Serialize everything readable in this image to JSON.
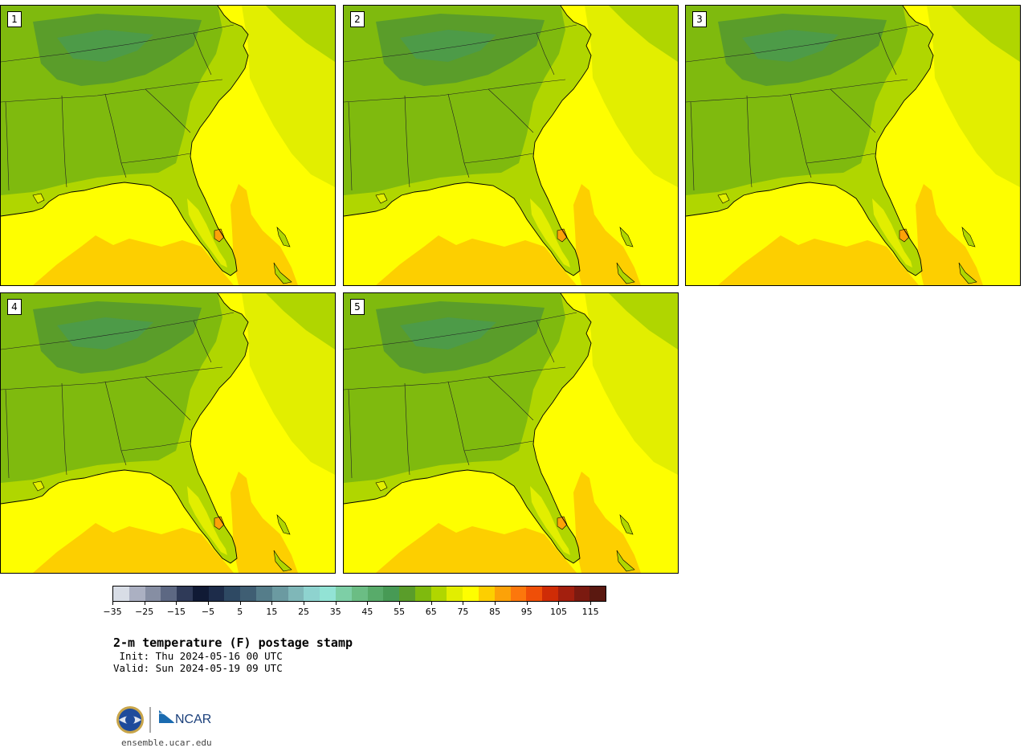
{
  "panels": [
    {
      "label": "1"
    },
    {
      "label": "2"
    },
    {
      "label": "3"
    },
    {
      "label": "4"
    },
    {
      "label": "5"
    }
  ],
  "colorbar": {
    "colors": [
      "#d8dde6",
      "#abb0c2",
      "#868ea3",
      "#5d6883",
      "#2f3a58",
      "#101a35",
      "#1d2c4a",
      "#2e4963",
      "#3f5e73",
      "#557d8a",
      "#6b9aa1",
      "#7fb7b8",
      "#8ed3cf",
      "#92e3d5",
      "#7dcfa6",
      "#6bbd84",
      "#58ab6a",
      "#479a55",
      "#5a9d2a",
      "#7fba0e",
      "#b0d600",
      "#e2ee00",
      "#fefe00",
      "#fdcf00",
      "#fca208",
      "#fc770c",
      "#ef4f08",
      "#cf2c06",
      "#a31f0e",
      "#7b1a10",
      "#5a1810"
    ],
    "ticks": [
      "−35",
      "−25",
      "−15",
      "−5",
      "5",
      "15",
      "25",
      "35",
      "45",
      "55",
      "65",
      "75",
      "85",
      "95",
      "105",
      "115"
    ]
  },
  "title": "2-m temperature (F) postage stamp",
  "init": " Init: Thu 2024-05-16 00 UTC",
  "valid": "Valid: Sun 2024-05-19 09 UTC",
  "logo": {
    "org1": "NSF",
    "org2": "NCAR"
  },
  "site": "ensemble.ucar.edu"
}
